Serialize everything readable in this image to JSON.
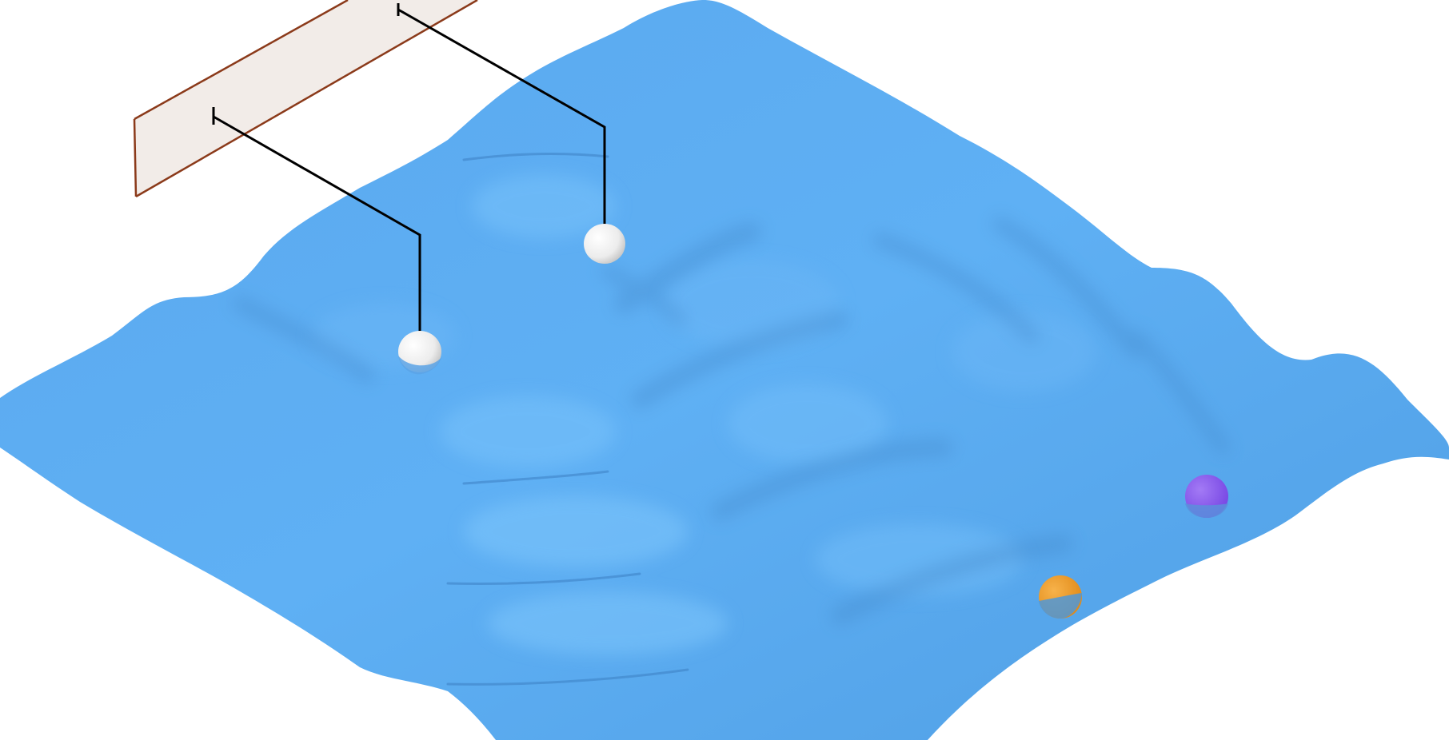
{
  "scene": {
    "surface_color": "#58a6ec",
    "surface_highlight": "#6fbaf6",
    "surface_shadow": "#3f86c8",
    "barrier_fill": "#f2ece8",
    "barrier_edge": "#8b3a1a",
    "pendulum_color": "#f4f4f4",
    "string_color": "#000000",
    "ball_orange": "#f09a28",
    "ball_purple": "#8a58ee",
    "icons": [
      "wave-surface",
      "slit-barrier",
      "pendulum-ball",
      "orange-ball",
      "purple-ball"
    ]
  }
}
